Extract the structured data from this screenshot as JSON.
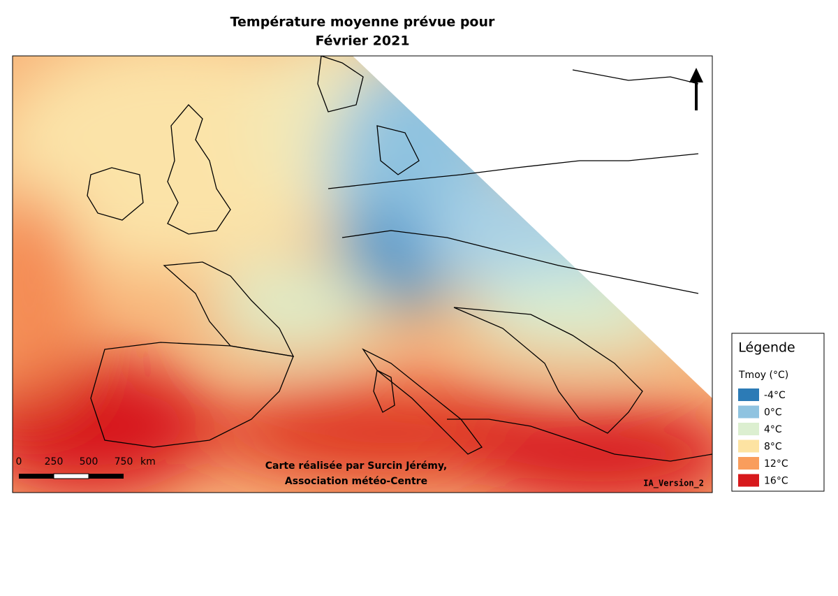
{
  "title": [
    "Température moyenne prévue pour",
    "Février 2021"
  ],
  "legend": {
    "heading": "Légende",
    "variable": "Tmoy (°C)",
    "entries": [
      {
        "label": "-4°C",
        "color": "#2c7bb6"
      },
      {
        "label": "0°C",
        "color": "#8fc3e0"
      },
      {
        "label": "4°C",
        "color": "#dcefd0"
      },
      {
        "label": "8°C",
        "color": "#fde3a2"
      },
      {
        "label": "12°C",
        "color": "#f99d5c"
      },
      {
        "label": "16°C",
        "color": "#d7191c"
      }
    ]
  },
  "scale_bar": {
    "labels": [
      "0",
      "250",
      "500",
      "750"
    ],
    "unit": "km"
  },
  "credit": [
    "Carte réalisée par Surcin Jérémy,",
    "Association météo-Centre"
  ],
  "version": "IA_Version_2"
}
